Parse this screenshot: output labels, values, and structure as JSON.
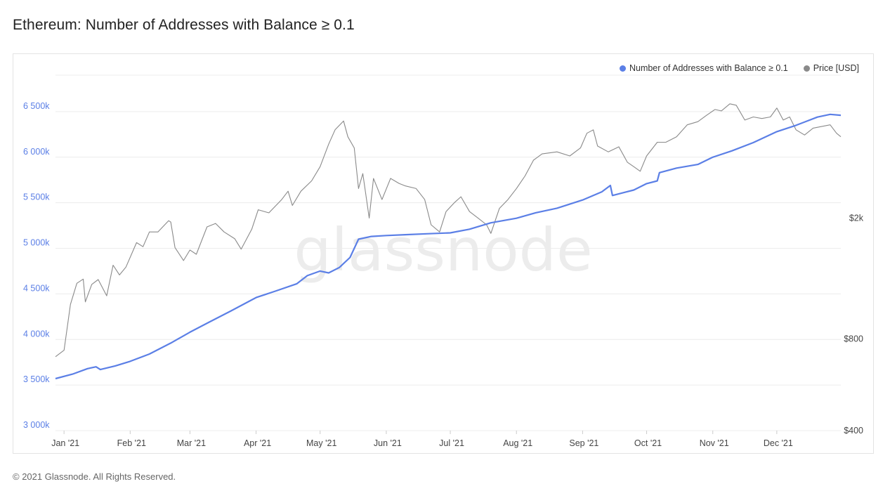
{
  "title": "Ethereum: Number of Addresses with Balance ≥ 0.1",
  "copyright": "© 2021 Glassnode. All Rights Reserved.",
  "watermark": "glassnode",
  "colors": {
    "addresses": "#5b7fe6",
    "price": "#8a8a8a",
    "left_axis_text": "#5b7fe6",
    "axis_text": "#444444",
    "grid": "#ececec",
    "watermark": "#ececec"
  },
  "legend": {
    "placement": "top-right",
    "items": [
      {
        "label": "Number of Addresses with Balance ≥ 0.1",
        "color": "#5b7fe6"
      },
      {
        "label": "Price [USD]",
        "color": "#8a8a8a"
      }
    ]
  },
  "chart_data": {
    "type": "line",
    "title": "Ethereum: Number of Addresses with Balance ≥ 0.1",
    "xlim": [
      "2020-12-28",
      "2021-12-31"
    ],
    "x_tick_dates": [
      "2021-01-01",
      "2021-02-01",
      "2021-03-01",
      "2021-04-01",
      "2021-05-01",
      "2021-06-01",
      "2021-07-01",
      "2021-08-01",
      "2021-09-01",
      "2021-10-01",
      "2021-11-01",
      "2021-12-01"
    ],
    "x_tick_labels": [
      "Jan '21",
      "Feb '21",
      "Mar '21",
      "Apr '21",
      "May '21",
      "Jun '21",
      "Jul '21",
      "Aug '21",
      "Sep '21",
      "Oct '21",
      "Nov '21",
      "Dec '21"
    ],
    "y_left": {
      "ylim": [
        3000000,
        6900000
      ],
      "ticks": [
        3000000,
        3500000,
        4000000,
        4500000,
        5000000,
        5500000,
        6000000,
        6500000
      ],
      "tick_labels": [
        "3 000k",
        "3 500k",
        "4 000k",
        "4 500k",
        "5 000k",
        "5 500k",
        "6 000k",
        "6 500k"
      ]
    },
    "y_right": {
      "scale": "log",
      "ylim": [
        400,
        5900
      ],
      "ticks": [
        400,
        800,
        2000
      ],
      "tick_labels": [
        "$400",
        "$800",
        "$2k"
      ]
    },
    "grid": true,
    "series": [
      {
        "name": "Number of Addresses with Balance ≥ 0.1",
        "axis": "left",
        "points": [
          [
            "2020-12-28",
            3570000
          ],
          [
            "2021-01-05",
            3620000
          ],
          [
            "2021-01-12",
            3680000
          ],
          [
            "2021-01-16",
            3700000
          ],
          [
            "2021-01-18",
            3670000
          ],
          [
            "2021-01-25",
            3710000
          ],
          [
            "2021-02-01",
            3760000
          ],
          [
            "2021-02-10",
            3840000
          ],
          [
            "2021-02-20",
            3960000
          ],
          [
            "2021-03-01",
            4080000
          ],
          [
            "2021-03-10",
            4190000
          ],
          [
            "2021-03-20",
            4310000
          ],
          [
            "2021-04-01",
            4460000
          ],
          [
            "2021-04-10",
            4530000
          ],
          [
            "2021-04-20",
            4610000
          ],
          [
            "2021-04-25",
            4700000
          ],
          [
            "2021-05-01",
            4750000
          ],
          [
            "2021-05-05",
            4730000
          ],
          [
            "2021-05-10",
            4790000
          ],
          [
            "2021-05-15",
            4900000
          ],
          [
            "2021-05-19",
            5100000
          ],
          [
            "2021-05-25",
            5130000
          ],
          [
            "2021-06-01",
            5140000
          ],
          [
            "2021-06-10",
            5150000
          ],
          [
            "2021-06-20",
            5160000
          ],
          [
            "2021-07-01",
            5170000
          ],
          [
            "2021-07-10",
            5210000
          ],
          [
            "2021-07-20",
            5280000
          ],
          [
            "2021-08-01",
            5330000
          ],
          [
            "2021-08-10",
            5390000
          ],
          [
            "2021-08-20",
            5440000
          ],
          [
            "2021-09-01",
            5530000
          ],
          [
            "2021-09-10",
            5620000
          ],
          [
            "2021-09-14",
            5690000
          ],
          [
            "2021-09-15",
            5580000
          ],
          [
            "2021-09-25",
            5640000
          ],
          [
            "2021-10-01",
            5710000
          ],
          [
            "2021-10-06",
            5740000
          ],
          [
            "2021-10-07",
            5830000
          ],
          [
            "2021-10-15",
            5880000
          ],
          [
            "2021-10-25",
            5920000
          ],
          [
            "2021-11-01",
            6000000
          ],
          [
            "2021-11-10",
            6070000
          ],
          [
            "2021-11-20",
            6160000
          ],
          [
            "2021-12-01",
            6280000
          ],
          [
            "2021-12-10",
            6350000
          ],
          [
            "2021-12-20",
            6440000
          ],
          [
            "2021-12-26",
            6470000
          ],
          [
            "2021-12-31",
            6460000
          ]
        ]
      },
      {
        "name": "Price [USD]",
        "axis": "right",
        "points": [
          [
            "2020-12-28",
            700
          ],
          [
            "2021-01-01",
            735
          ],
          [
            "2021-01-04",
            1040
          ],
          [
            "2021-01-07",
            1220
          ],
          [
            "2021-01-10",
            1260
          ],
          [
            "2021-01-11",
            1060
          ],
          [
            "2021-01-14",
            1210
          ],
          [
            "2021-01-17",
            1255
          ],
          [
            "2021-01-21",
            1110
          ],
          [
            "2021-01-24",
            1400
          ],
          [
            "2021-01-27",
            1300
          ],
          [
            "2021-01-30",
            1380
          ],
          [
            "2021-02-04",
            1660
          ],
          [
            "2021-02-07",
            1610
          ],
          [
            "2021-02-10",
            1800
          ],
          [
            "2021-02-14",
            1800
          ],
          [
            "2021-02-19",
            1960
          ],
          [
            "2021-02-20",
            1940
          ],
          [
            "2021-02-22",
            1600
          ],
          [
            "2021-02-26",
            1450
          ],
          [
            "2021-03-01",
            1570
          ],
          [
            "2021-03-04",
            1520
          ],
          [
            "2021-03-09",
            1870
          ],
          [
            "2021-03-13",
            1920
          ],
          [
            "2021-03-17",
            1800
          ],
          [
            "2021-03-22",
            1710
          ],
          [
            "2021-03-25",
            1580
          ],
          [
            "2021-03-30",
            1840
          ],
          [
            "2021-04-02",
            2130
          ],
          [
            "2021-04-07",
            2080
          ],
          [
            "2021-04-13",
            2300
          ],
          [
            "2021-04-16",
            2450
          ],
          [
            "2021-04-18",
            2200
          ],
          [
            "2021-04-22",
            2450
          ],
          [
            "2021-04-27",
            2650
          ],
          [
            "2021-05-01",
            2950
          ],
          [
            "2021-05-05",
            3500
          ],
          [
            "2021-05-08",
            3900
          ],
          [
            "2021-05-12",
            4170
          ],
          [
            "2021-05-14",
            3700
          ],
          [
            "2021-05-17",
            3400
          ],
          [
            "2021-05-19",
            2500
          ],
          [
            "2021-05-21",
            2800
          ],
          [
            "2021-05-24",
            2000
          ],
          [
            "2021-05-26",
            2700
          ],
          [
            "2021-05-30",
            2300
          ],
          [
            "2021-06-03",
            2700
          ],
          [
            "2021-06-07",
            2600
          ],
          [
            "2021-06-10",
            2550
          ],
          [
            "2021-06-15",
            2500
          ],
          [
            "2021-06-19",
            2300
          ],
          [
            "2021-06-22",
            1900
          ],
          [
            "2021-06-26",
            1800
          ],
          [
            "2021-06-29",
            2100
          ],
          [
            "2021-07-03",
            2250
          ],
          [
            "2021-07-06",
            2350
          ],
          [
            "2021-07-10",
            2100
          ],
          [
            "2021-07-14",
            2000
          ],
          [
            "2021-07-18",
            1900
          ],
          [
            "2021-07-20",
            1780
          ],
          [
            "2021-07-24",
            2150
          ],
          [
            "2021-07-28",
            2300
          ],
          [
            "2021-08-01",
            2500
          ],
          [
            "2021-08-05",
            2750
          ],
          [
            "2021-08-09",
            3100
          ],
          [
            "2021-08-13",
            3250
          ],
          [
            "2021-08-20",
            3300
          ],
          [
            "2021-08-26",
            3200
          ],
          [
            "2021-08-31",
            3400
          ],
          [
            "2021-09-03",
            3800
          ],
          [
            "2021-09-06",
            3900
          ],
          [
            "2021-09-08",
            3450
          ],
          [
            "2021-09-13",
            3300
          ],
          [
            "2021-09-18",
            3430
          ],
          [
            "2021-09-22",
            3050
          ],
          [
            "2021-09-25",
            2950
          ],
          [
            "2021-09-28",
            2850
          ],
          [
            "2021-10-01",
            3200
          ],
          [
            "2021-10-06",
            3550
          ],
          [
            "2021-10-10",
            3550
          ],
          [
            "2021-10-15",
            3700
          ],
          [
            "2021-10-20",
            4050
          ],
          [
            "2021-10-25",
            4150
          ],
          [
            "2021-10-29",
            4350
          ],
          [
            "2021-11-02",
            4550
          ],
          [
            "2021-11-05",
            4500
          ],
          [
            "2021-11-09",
            4750
          ],
          [
            "2021-11-12",
            4700
          ],
          [
            "2021-11-16",
            4200
          ],
          [
            "2021-11-20",
            4300
          ],
          [
            "2021-11-24",
            4250
          ],
          [
            "2021-11-28",
            4300
          ],
          [
            "2021-12-01",
            4600
          ],
          [
            "2021-12-04",
            4200
          ],
          [
            "2021-12-07",
            4300
          ],
          [
            "2021-12-10",
            3900
          ],
          [
            "2021-12-14",
            3750
          ],
          [
            "2021-12-18",
            3950
          ],
          [
            "2021-12-22",
            4000
          ],
          [
            "2021-12-26",
            4050
          ],
          [
            "2021-12-29",
            3800
          ],
          [
            "2021-12-31",
            3700
          ]
        ]
      }
    ]
  }
}
